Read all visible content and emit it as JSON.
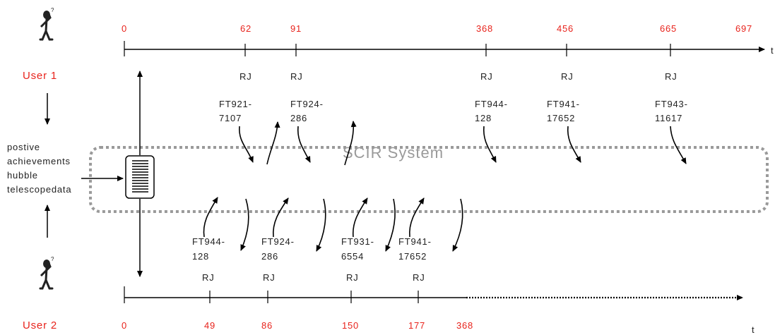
{
  "system_label": "SCIR System",
  "axis_symbol": "t",
  "user1": {
    "label": "User 1",
    "times": [
      "0",
      "62",
      "91",
      "368",
      "456",
      "665",
      "697"
    ],
    "events": [
      {
        "tag": "RJ",
        "doc_line1": "FT921-",
        "doc_line2": "7107"
      },
      {
        "tag": "RJ",
        "doc_line1": "FT924-",
        "doc_line2": "286"
      },
      {
        "tag": "RJ",
        "doc_line1": "FT944-",
        "doc_line2": "128"
      },
      {
        "tag": "RJ",
        "doc_line1": "FT941-",
        "doc_line2": "17652"
      },
      {
        "tag": "RJ",
        "doc_line1": "FT943-",
        "doc_line2": "11617"
      }
    ]
  },
  "user2": {
    "label": "User 2",
    "times": [
      "0",
      "49",
      "86",
      "150",
      "177",
      "368"
    ],
    "events": [
      {
        "tag": "RJ",
        "doc_line1": "FT944-",
        "doc_line2": "128"
      },
      {
        "tag": "RJ",
        "doc_line1": "FT924-",
        "doc_line2": "286"
      },
      {
        "tag": "RJ",
        "doc_line1": "FT931-",
        "doc_line2": "6554"
      },
      {
        "tag": "RJ",
        "doc_line1": "FT941-",
        "doc_line2": "17652"
      }
    ]
  },
  "query": {
    "line1": "postive",
    "line2": "achievements",
    "line3": "hubble",
    "line4": "telescopedata"
  },
  "colors": {
    "time_label": "#e8231c",
    "system_border": "#9a9a9a",
    "system_label": "#9a9a9a"
  }
}
